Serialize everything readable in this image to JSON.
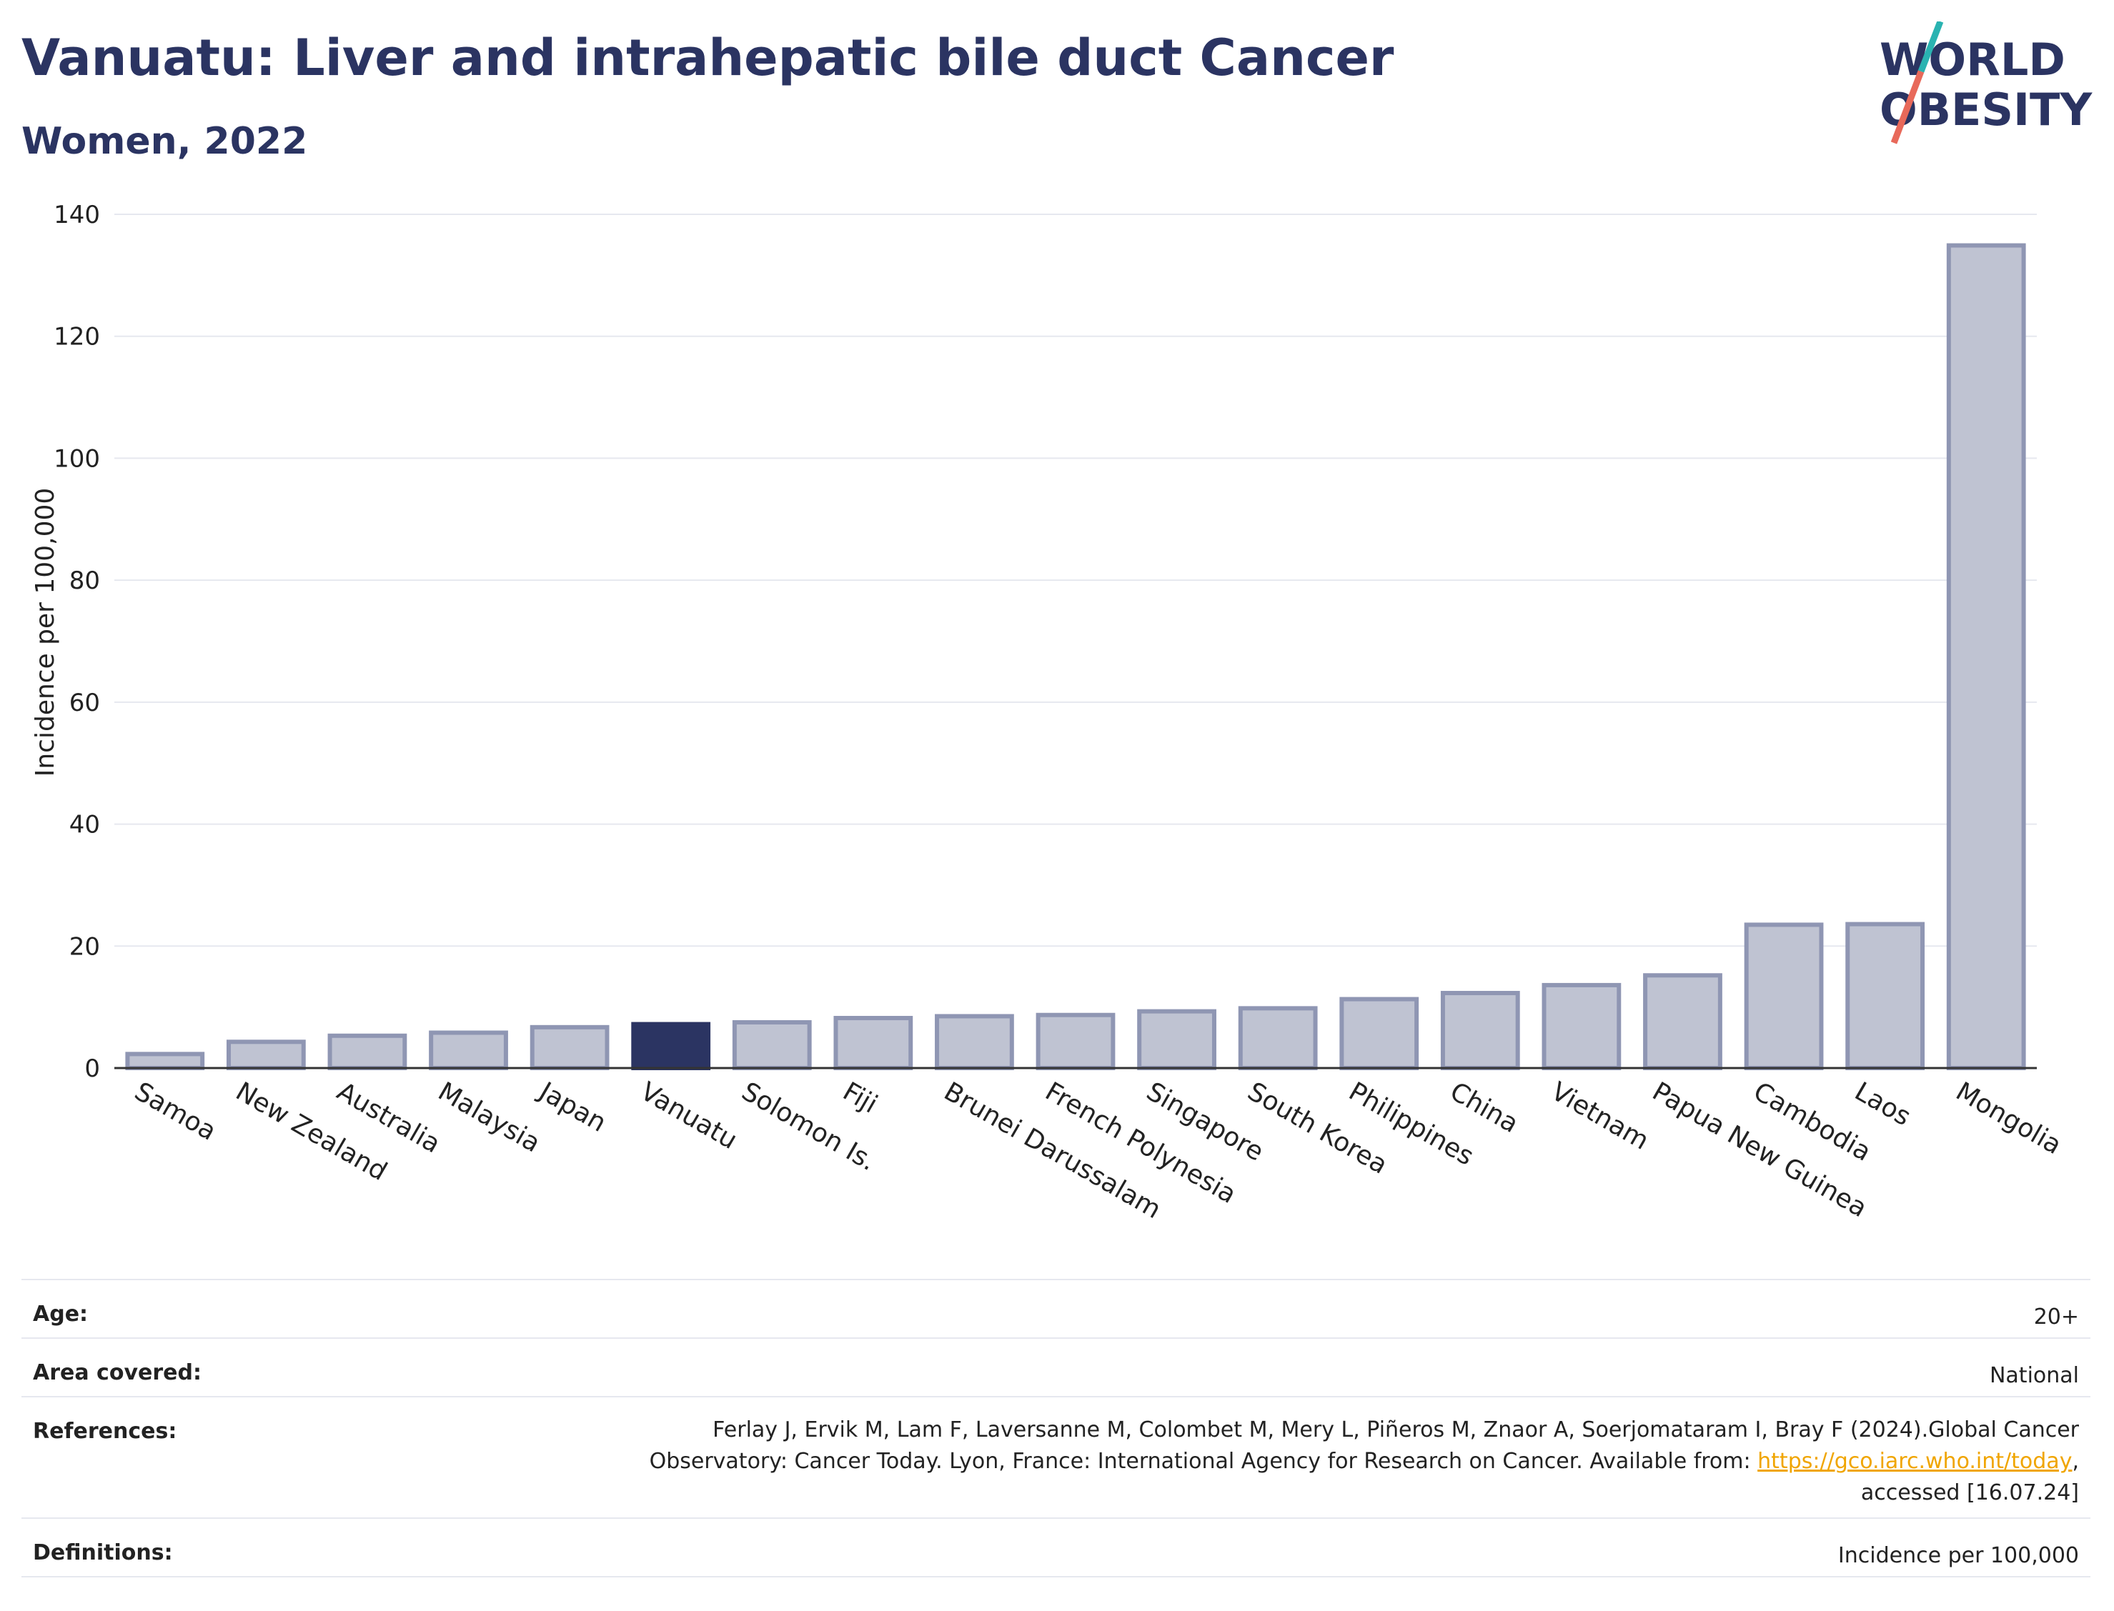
{
  "header": {
    "title": "Vanuatu: Liver and intrahepatic bile duct Cancer",
    "subtitle": "Women, 2022",
    "logo_line1": "WORLD",
    "logo_line2": "OBESITY"
  },
  "chart_data": {
    "type": "bar",
    "title": "Vanuatu: Liver and intrahepatic bile duct Cancer",
    "subtitle": "Women, 2022",
    "ylabel": "Incidence per 100,000",
    "xlabel": "",
    "ylim": [
      0,
      140
    ],
    "yticks": [
      0,
      20,
      40,
      60,
      80,
      100,
      120,
      140
    ],
    "categories": [
      "Samoa",
      "New Zealand",
      "Australia",
      "Malaysia",
      "Japan",
      "Vanuatu",
      "Solomon Is.",
      "Fiji",
      "Brunei Darussalam",
      "French Polynesia",
      "Singapore",
      "South Korea",
      "Philippines",
      "China",
      "Vietnam",
      "Papua New Guinea",
      "Cambodia",
      "Laos",
      "Mongolia"
    ],
    "values": [
      2.3,
      4.3,
      5.3,
      5.8,
      6.7,
      7.2,
      7.5,
      8.2,
      8.5,
      8.7,
      9.3,
      9.8,
      11.3,
      12.3,
      13.6,
      15.2,
      23.5,
      23.6,
      134.9
    ],
    "highlight": "Vanuatu",
    "colors": {
      "bar": "#bfc3d2",
      "bar_edge": "#8f96b3",
      "highlight": "#2b3462",
      "grid": "#e6e8ef",
      "axis": "#333333"
    },
    "grid": true
  },
  "meta": {
    "age_label": "Age:",
    "age_value": "20+",
    "area_label": "Area covered:",
    "area_value": "National",
    "references_label": "References:",
    "references_line1": "Ferlay J, Ervik M, Lam F, Laversanne M, Colombet M, Mery L, Piñeros M, Znaor A, Soerjomataram I, Bray F (2024).Global Cancer",
    "references_line2_pre": "Observatory: Cancer Today. Lyon, France: International Agency for Research on Cancer. Available from: ",
    "references_link": "https://gco.iarc.who.int/today",
    "references_line2_post": ",",
    "references_line3": "accessed [16.07.24]",
    "definitions_label": "Definitions:",
    "definitions_value": "Incidence per 100,000"
  }
}
